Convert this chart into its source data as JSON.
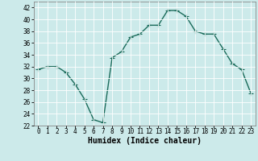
{
  "x": [
    0,
    1,
    2,
    3,
    4,
    5,
    6,
    7,
    8,
    9,
    10,
    11,
    12,
    13,
    14,
    15,
    16,
    17,
    18,
    19,
    20,
    21,
    22,
    23
  ],
  "y": [
    31.5,
    32,
    32,
    31,
    29,
    26.5,
    23,
    22.5,
    33.5,
    34.5,
    37,
    37.5,
    39,
    39,
    41.5,
    41.5,
    40.5,
    38,
    37.5,
    37.5,
    35,
    32.5,
    31.5,
    27.5
  ],
  "line_color": "#1a6b5a",
  "marker": "+",
  "markersize": 4,
  "linewidth": 1.0,
  "bg_color": "#cceaea",
  "grid_color": "#ffffff",
  "xlabel": "Humidex (Indice chaleur)",
  "ylim": [
    22,
    43
  ],
  "xlim": [
    -0.5,
    23.5
  ],
  "yticks": [
    22,
    24,
    26,
    28,
    30,
    32,
    34,
    36,
    38,
    40,
    42
  ],
  "xticks": [
    0,
    1,
    2,
    3,
    4,
    5,
    6,
    7,
    8,
    9,
    10,
    11,
    12,
    13,
    14,
    15,
    16,
    17,
    18,
    19,
    20,
    21,
    22,
    23
  ],
  "tick_fontsize": 5.5,
  "label_fontsize": 7.0
}
